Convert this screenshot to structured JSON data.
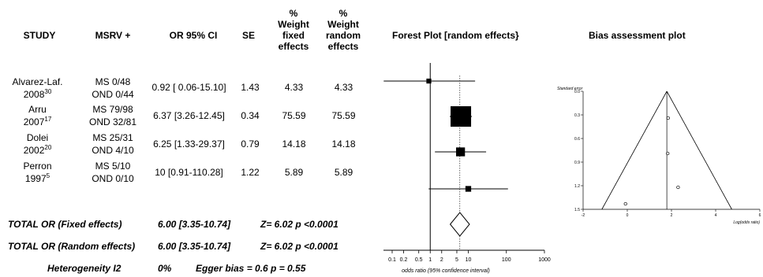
{
  "table": {
    "headers": {
      "study": "STUDY",
      "msrv": "MSRV +",
      "or_ci": "OR 95% CI",
      "se": "SE",
      "wfixed": [
        "%",
        "Weight",
        "fixed",
        "effects"
      ],
      "wrandom": [
        "%",
        "Weight",
        "random",
        "effects"
      ]
    },
    "rows": [
      {
        "study": "Alvarez-Laf.",
        "year": "2008",
        "ref": "30",
        "ms": "MS 0/48",
        "ond": "OND 0/44",
        "or_ci": "0.92 [ 0.06-15.10]",
        "se": "1.43",
        "wfixed": "4.33",
        "wrandom": "4.33"
      },
      {
        "study": "Arru",
        "year": "2007",
        "ref": "17",
        "ms": "MS 79/98",
        "ond": "OND 32/81",
        "or_ci": "6.37 [3.26-12.45]",
        "se": "0.34",
        "wfixed": "75.59",
        "wrandom": "75.59"
      },
      {
        "study": "Dolei",
        "year": "2002",
        "ref": "20",
        "ms": "MS 25/31",
        "ond": "OND 4/10",
        "or_ci": "6.25 [1.33-29.37]",
        "se": "0.79",
        "wfixed": "14.18",
        "wrandom": "14.18"
      },
      {
        "study": "Perron",
        "year": "1997",
        "ref": "5",
        "ms": "MS 5/10",
        "ond": "OND 0/10",
        "or_ci": "10 [0.91-110.28]",
        "se": "1.22",
        "wfixed": "5.89",
        "wrandom": "5.89"
      }
    ],
    "totals": {
      "fixed_label": "TOTAL OR (Fixed effects)",
      "fixed_value": "6.00 [3.35-10.74]",
      "fixed_z": "Z= 6.02 p <0.0001",
      "random_label": "TOTAL OR (Random effects)",
      "random_value": "6.00 [3.35-10.74]",
      "random_z": "Z= 6.02 p <0.0001",
      "het_label": "Heterogeneity I2",
      "het_value": "0%",
      "egger": "Egger bias = 0.6 p = 0.55"
    }
  },
  "chart_data": [
    {
      "type": "scatter",
      "title": "Forest Plot [random effects}",
      "xlabel": "odds ratio (95% confidence interval)",
      "scale": "log",
      "xlim": [
        0.05,
        1000
      ],
      "ticks": [
        0.1,
        0.2,
        0.5,
        1,
        2,
        5,
        10,
        100,
        1000
      ],
      "tick_labels": [
        "0.1",
        "0.2",
        "0.5",
        "1",
        "2",
        "5",
        "10",
        "100",
        "1000"
      ],
      "studies": [
        {
          "or": 0.92,
          "lo": 0.06,
          "hi": 15.1,
          "weight": 4.33
        },
        {
          "or": 6.37,
          "lo": 3.26,
          "hi": 12.45,
          "weight": 75.59
        },
        {
          "or": 6.25,
          "lo": 1.33,
          "hi": 29.37,
          "weight": 14.18
        },
        {
          "or": 10,
          "lo": 0.91,
          "hi": 110.28,
          "weight": 5.89
        }
      ],
      "pooled": {
        "or": 6.0,
        "lo": 3.35,
        "hi": 10.74
      },
      "reference_line": 1
    },
    {
      "type": "scatter",
      "title": "Bias assessment plot",
      "xlabel": "Log(odds ratio)",
      "ylabel": "Standard error",
      "xlim": [
        -2,
        6
      ],
      "ylim": [
        0,
        1.5
      ],
      "yreversed": true,
      "x_ticks": [
        "-2",
        "0",
        "2",
        "4",
        "6"
      ],
      "y_ticks": [
        "0.0",
        "0.3",
        "0.6",
        "0.9",
        "1.2",
        "1.5"
      ],
      "points": [
        {
          "x": -0.08,
          "y": 1.43
        },
        {
          "x": 1.85,
          "y": 0.34
        },
        {
          "x": 1.83,
          "y": 0.79
        },
        {
          "x": 2.3,
          "y": 1.22
        }
      ],
      "pooled_log_or": 1.79
    }
  ]
}
